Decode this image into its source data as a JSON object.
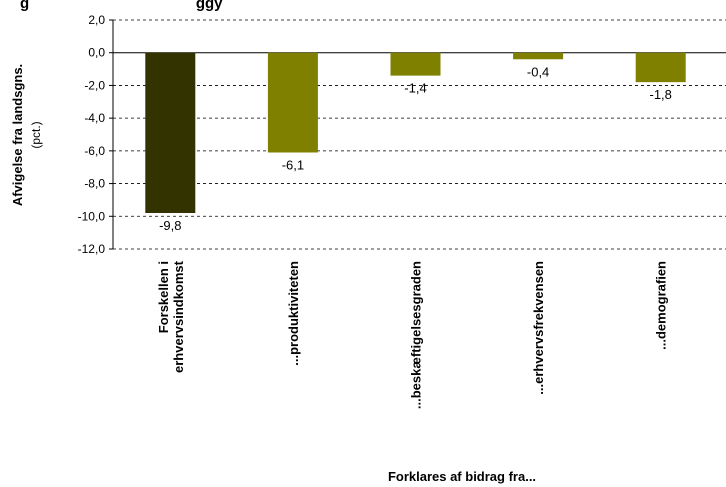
{
  "chart_data": {
    "type": "bar",
    "title": "g                                        ggy",
    "categories": [
      "Forskellen i erhvervsindkomst",
      "...produktiviteten",
      "...beskæftigelsesgraden",
      "...erhvervsfrekvensen",
      "...demografien"
    ],
    "category_lines": [
      [
        "Forskellen i",
        "erhvervsindkomst"
      ],
      [
        "...produktiviteten"
      ],
      [
        "...beskæftigelsesgraden"
      ],
      [
        "...erhvervsfrekvensen"
      ],
      [
        "...demografien"
      ]
    ],
    "values": [
      -9.8,
      -6.1,
      -1.4,
      -0.4,
      -1.8
    ],
    "value_labels": [
      "-9,8",
      "-6,1",
      "-1,4",
      "-0,4",
      "-1,8"
    ],
    "bar_colors": [
      "#333300",
      "#808000",
      "#808000",
      "#808000",
      "#808000"
    ],
    "ylim": [
      -12,
      2
    ],
    "yticks": [
      2,
      0,
      -2,
      -4,
      -6,
      -8,
      -10,
      -12
    ],
    "ytick_labels": [
      "2,0",
      "0,0",
      "-2,0",
      "-4,0",
      "-6,0",
      "-8,0",
      "-10,0",
      "-12,0"
    ],
    "ylabel": "Afvigelse fra landsgns.",
    "ylabel_sub": "(pct.)",
    "xlabel": "Forklares af bidrag fra...",
    "grid": true,
    "grid_style": "dashed",
    "legend": "none"
  }
}
